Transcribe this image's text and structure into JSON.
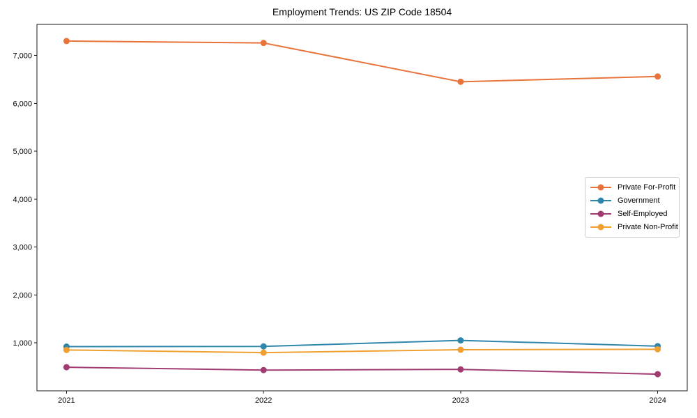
{
  "chart_data": {
    "type": "line",
    "title": "Employment Trends: US ZIP Code 18504",
    "x": [
      2021,
      2022,
      2023,
      2024
    ],
    "x_tick_labels": [
      "2021",
      "2022",
      "2023",
      "2024"
    ],
    "series": [
      {
        "name": "Private For-Profit",
        "color": "#E8743B",
        "values": [
          7300,
          7260,
          6450,
          6560
        ]
      },
      {
        "name": "Government",
        "color": "#2E86AB",
        "values": [
          920,
          925,
          1050,
          930
        ]
      },
      {
        "name": "Self-Employed",
        "color": "#A23B72",
        "values": [
          490,
          430,
          445,
          345
        ]
      },
      {
        "name": "Private Non-Profit",
        "color": "#F0A030",
        "values": [
          850,
          795,
          855,
          865
        ]
      }
    ],
    "y_ticks": [
      1000,
      2000,
      3000,
      4000,
      5000,
      6000,
      7000
    ],
    "y_tick_labels": [
      "1,000",
      "2,000",
      "3,000",
      "4,000",
      "5,000",
      "6,000",
      "7,000"
    ],
    "xlim": [
      2020.85,
      2024.15
    ],
    "ylim": [
      -3,
      7648
    ],
    "grid": false,
    "legend_position": "center right",
    "axis_color": "#1a1a1a",
    "background": "#ffffff",
    "line_width": 2,
    "marker": "circle",
    "marker_radius": 4.5
  }
}
